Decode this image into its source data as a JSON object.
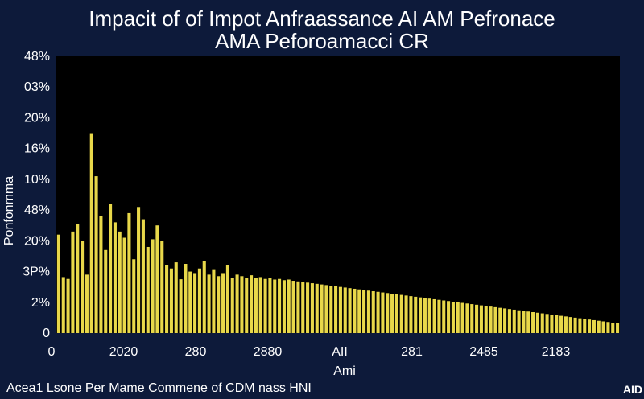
{
  "chart_data": {
    "type": "bar",
    "title": "Impacit of of Impot Anfraassance AI AM Pefronace",
    "subtitle": "AMA Peforoamacci CR",
    "xlabel": "Ami",
    "ylabel": "Ponfonmma",
    "ytick_labels": [
      "0",
      "2%",
      "3P%",
      "20%",
      "48%",
      "10%",
      "16%",
      "20%",
      "03%",
      "48%"
    ],
    "xtick_labels": [
      "0",
      "2020",
      "280",
      "2880",
      "AII",
      "281",
      "2485",
      "2183"
    ],
    "bar_color": "#e8d84a",
    "plot_background": "#000000",
    "series_values_ylevel": [
      3.2,
      1.82,
      1.76,
      3.3,
      3.55,
      3.0,
      1.9,
      6.5,
      5.1,
      3.8,
      2.7,
      4.2,
      3.6,
      3.3,
      3.1,
      3.9,
      2.4,
      4.1,
      3.7,
      2.8,
      3.05,
      3.5,
      3.0,
      2.2,
      2.1,
      2.3,
      1.75,
      2.25,
      2.0,
      1.95,
      2.1,
      2.35,
      1.9,
      2.05,
      1.85,
      1.95,
      2.2,
      1.8,
      1.9,
      1.85,
      1.8,
      1.88,
      1.78,
      1.82,
      1.76,
      1.79,
      1.74,
      1.76,
      1.72,
      1.74,
      1.7,
      1.68,
      1.66,
      1.64,
      1.62,
      1.6,
      1.58,
      1.56,
      1.54,
      1.52,
      1.5,
      1.48,
      1.46,
      1.44,
      1.42,
      1.4,
      1.38,
      1.36,
      1.34,
      1.32,
      1.3,
      1.28,
      1.26,
      1.24,
      1.22,
      1.2,
      1.18,
      1.16,
      1.14,
      1.12,
      1.1,
      1.08,
      1.06,
      1.04,
      1.02,
      1.0,
      0.98,
      0.96,
      0.94,
      0.92,
      0.9,
      0.88,
      0.86,
      0.84,
      0.82,
      0.8,
      0.78,
      0.76,
      0.74,
      0.72,
      0.7,
      0.68,
      0.66,
      0.64,
      0.62,
      0.6,
      0.58,
      0.56,
      0.54,
      0.52,
      0.5,
      0.48,
      0.46,
      0.44,
      0.42,
      0.4,
      0.38,
      0.36,
      0.34,
      0.32
    ],
    "ylim": [
      0,
      9
    ],
    "grid": false,
    "legend": "none"
  },
  "footer": {
    "caption": "Acea1 Lsone Per Mame Commene of CDM nass HNI",
    "corner_label": "AID"
  }
}
